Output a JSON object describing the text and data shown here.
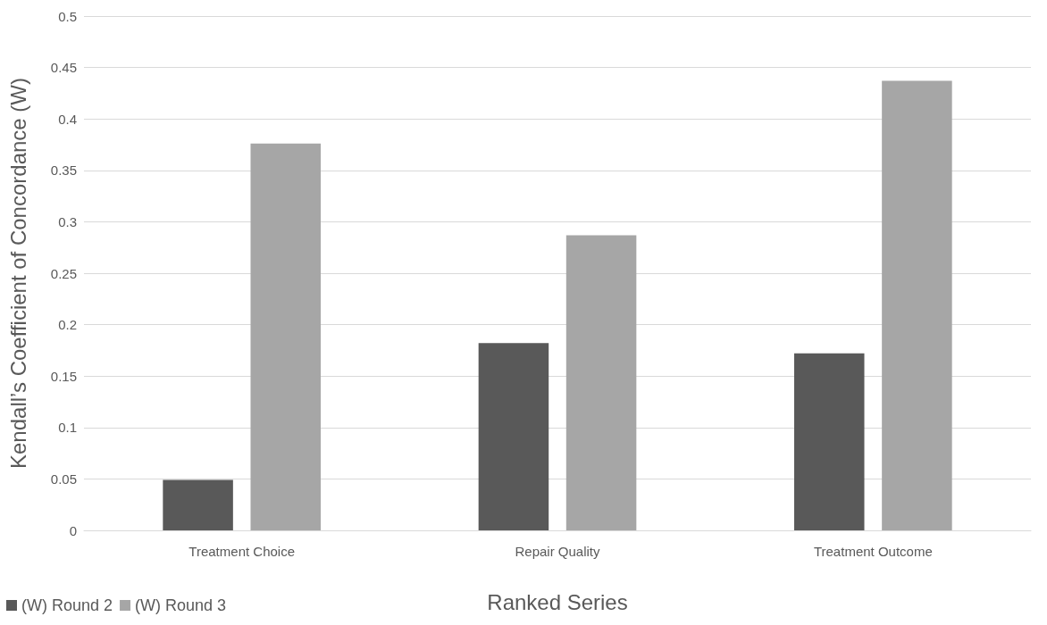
{
  "chart_data": {
    "type": "bar",
    "xlabel": "Ranked Series",
    "ylabel": "Kendall’s Coefficient of Concordance (W)",
    "categories": [
      "Treatment Choice",
      "Repair Quality",
      "Treatment Outcome"
    ],
    "series": [
      {
        "name": "(W) Round 2",
        "color": "#595959",
        "values": [
          0.049,
          0.182,
          0.172
        ]
      },
      {
        "name": "(W) Round 3",
        "color": "#a6a6a6",
        "values": [
          0.376,
          0.287,
          0.437
        ]
      }
    ],
    "ylim": [
      0,
      0.5
    ],
    "yticks": [
      0,
      0.05,
      0.1,
      0.15,
      0.2,
      0.25,
      0.3,
      0.35,
      0.4,
      0.45,
      0.5
    ],
    "grid": "y",
    "legend": "bottom left"
  }
}
